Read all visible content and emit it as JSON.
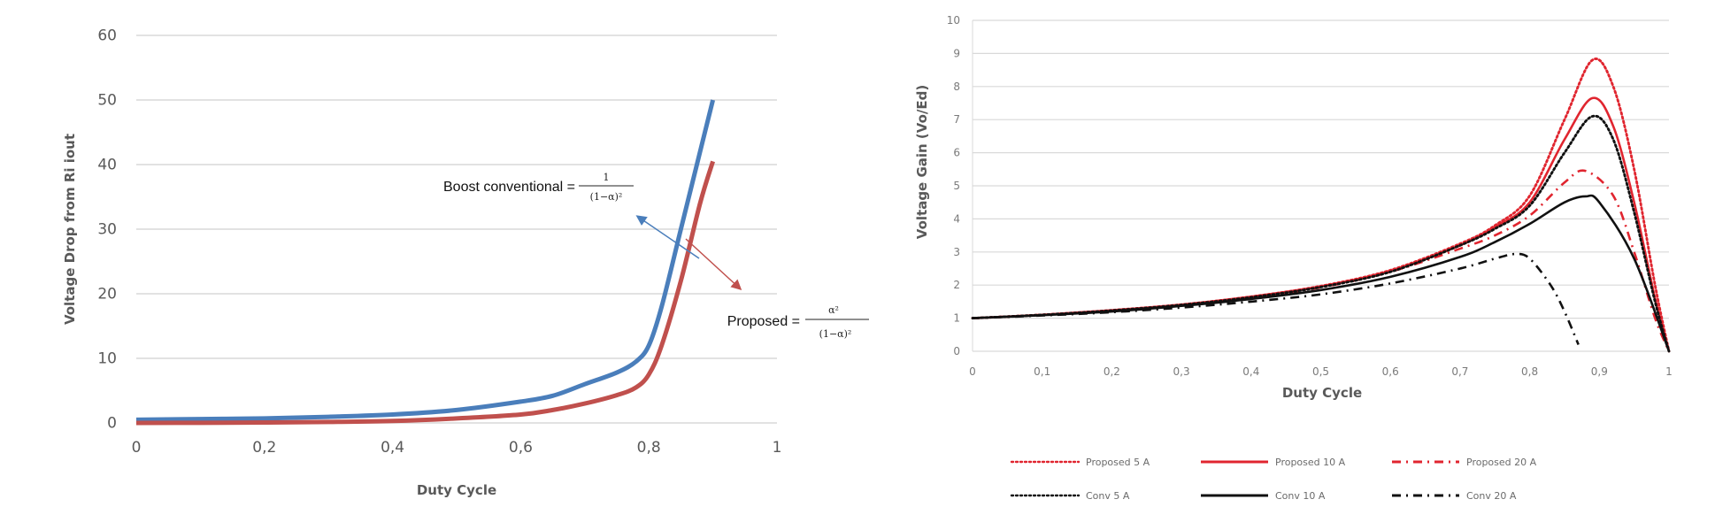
{
  "chart_data": [
    {
      "type": "line",
      "title": "",
      "xlabel": "Duty Cycle",
      "ylabel": "Voltage Drop from Ri iout",
      "xlim": [
        0,
        1
      ],
      "ylim": [
        0,
        60
      ],
      "xticks": [
        "0",
        "0,2",
        "0,4",
        "0,6",
        "0,8",
        "1"
      ],
      "yticks": [
        "0",
        "10",
        "20",
        "30",
        "40",
        "50",
        "60"
      ],
      "grid": true,
      "legend": "none",
      "series": [
        {
          "color": "#4a7ebb",
          "x": [
            0,
            0.1,
            0.2,
            0.3,
            0.4,
            0.5,
            0.6,
            0.65,
            0.7,
            0.75,
            0.78,
            0.8,
            0.82,
            0.85,
            0.88,
            0.9
          ],
          "y": [
            0.5,
            0.6,
            0.7,
            0.95,
            1.3,
            2.0,
            3.3,
            4.2,
            6.0,
            7.8,
            9.5,
            12,
            18,
            30,
            42,
            50
          ]
        },
        {
          "color": "#c0504d",
          "x": [
            0,
            0.1,
            0.2,
            0.3,
            0.4,
            0.5,
            0.6,
            0.65,
            0.7,
            0.75,
            0.78,
            0.8,
            0.82,
            0.85,
            0.88,
            0.9
          ],
          "y": [
            0,
            0.02,
            0.07,
            0.15,
            0.3,
            0.7,
            1.3,
            2.0,
            3.0,
            4.3,
            5.5,
            7.5,
            12,
            22,
            34,
            40.5
          ]
        }
      ],
      "annotations": [
        {
          "text": "Boost conventional =",
          "numerator": "1",
          "denominator": "(1−α)²",
          "color": "#4a7ebb"
        },
        {
          "text": "Proposed =",
          "numerator": "α²",
          "denominator": "(1−α)²",
          "color": "#c0504d"
        }
      ]
    },
    {
      "type": "line",
      "title": "",
      "xlabel": "Duty Cycle",
      "ylabel": "Voltage Gain (Vo/Ed)",
      "xlim": [
        0,
        1
      ],
      "ylim": [
        0,
        10
      ],
      "xticks": [
        "0",
        "0,1",
        "0,2",
        "0,3",
        "0,4",
        "0,5",
        "0,6",
        "0,7",
        "0,8",
        "0,9",
        "1"
      ],
      "yticks": [
        "0",
        "1",
        "2",
        "3",
        "4",
        "5",
        "6",
        "7",
        "8",
        "9",
        "10"
      ],
      "grid": true,
      "legend": "bottom",
      "series": [
        {
          "name": "Proposed 5 A",
          "color": "#e0252f",
          "style": "dotted",
          "x": [
            0,
            0.1,
            0.2,
            0.3,
            0.4,
            0.5,
            0.6,
            0.7,
            0.75,
            0.8,
            0.85,
            0.89,
            0.92,
            0.95,
            0.98,
            1
          ],
          "y": [
            1,
            1.1,
            1.24,
            1.41,
            1.65,
            1.97,
            2.45,
            3.25,
            3.8,
            4.7,
            7.0,
            8.8,
            8.0,
            5.5,
            2.0,
            0
          ]
        },
        {
          "name": "Proposed 10 A",
          "color": "#e0252f",
          "style": "solid",
          "x": [
            0,
            0.1,
            0.2,
            0.3,
            0.4,
            0.5,
            0.6,
            0.7,
            0.75,
            0.8,
            0.85,
            0.89,
            0.92,
            0.95,
            0.98,
            1
          ],
          "y": [
            1,
            1.1,
            1.24,
            1.41,
            1.65,
            1.96,
            2.43,
            3.2,
            3.75,
            4.5,
            6.4,
            7.65,
            6.8,
            4.5,
            1.6,
            0
          ]
        },
        {
          "name": "Proposed 20 A",
          "color": "#e0252f",
          "style": "dashdot",
          "x": [
            0,
            0.1,
            0.2,
            0.3,
            0.4,
            0.5,
            0.6,
            0.7,
            0.75,
            0.8,
            0.85,
            0.88,
            0.92,
            0.95,
            0.98,
            1
          ],
          "y": [
            1,
            1.1,
            1.23,
            1.4,
            1.63,
            1.93,
            2.4,
            3.1,
            3.5,
            4.1,
            5.1,
            5.45,
            4.7,
            3.0,
            1.0,
            0
          ]
        },
        {
          "name": "Conv 5 A",
          "color": "#111111",
          "style": "dotted",
          "x": [
            0,
            0.1,
            0.2,
            0.3,
            0.4,
            0.5,
            0.6,
            0.7,
            0.75,
            0.8,
            0.85,
            0.89,
            0.92,
            0.95,
            0.98,
            1
          ],
          "y": [
            1,
            1.1,
            1.23,
            1.4,
            1.63,
            1.94,
            2.4,
            3.2,
            3.7,
            4.4,
            6.0,
            7.1,
            6.4,
            4.2,
            1.5,
            0
          ]
        },
        {
          "name": "Conv 10 A",
          "color": "#111111",
          "style": "solid",
          "x": [
            0,
            0.1,
            0.2,
            0.3,
            0.4,
            0.5,
            0.6,
            0.7,
            0.75,
            0.8,
            0.85,
            0.88,
            0.9,
            0.95,
            1
          ],
          "y": [
            1,
            1.09,
            1.2,
            1.37,
            1.58,
            1.85,
            2.25,
            2.85,
            3.3,
            3.85,
            4.5,
            4.68,
            4.5,
            2.8,
            0
          ]
        },
        {
          "name": "Conv 20 A",
          "color": "#111111",
          "style": "dashdot",
          "x": [
            0,
            0.1,
            0.2,
            0.3,
            0.4,
            0.5,
            0.6,
            0.7,
            0.75,
            0.78,
            0.8,
            0.83,
            0.85,
            0.87
          ],
          "y": [
            1,
            1.08,
            1.18,
            1.32,
            1.5,
            1.72,
            2.05,
            2.5,
            2.8,
            2.94,
            2.8,
            2.0,
            1.2,
            0.2
          ]
        }
      ]
    }
  ]
}
